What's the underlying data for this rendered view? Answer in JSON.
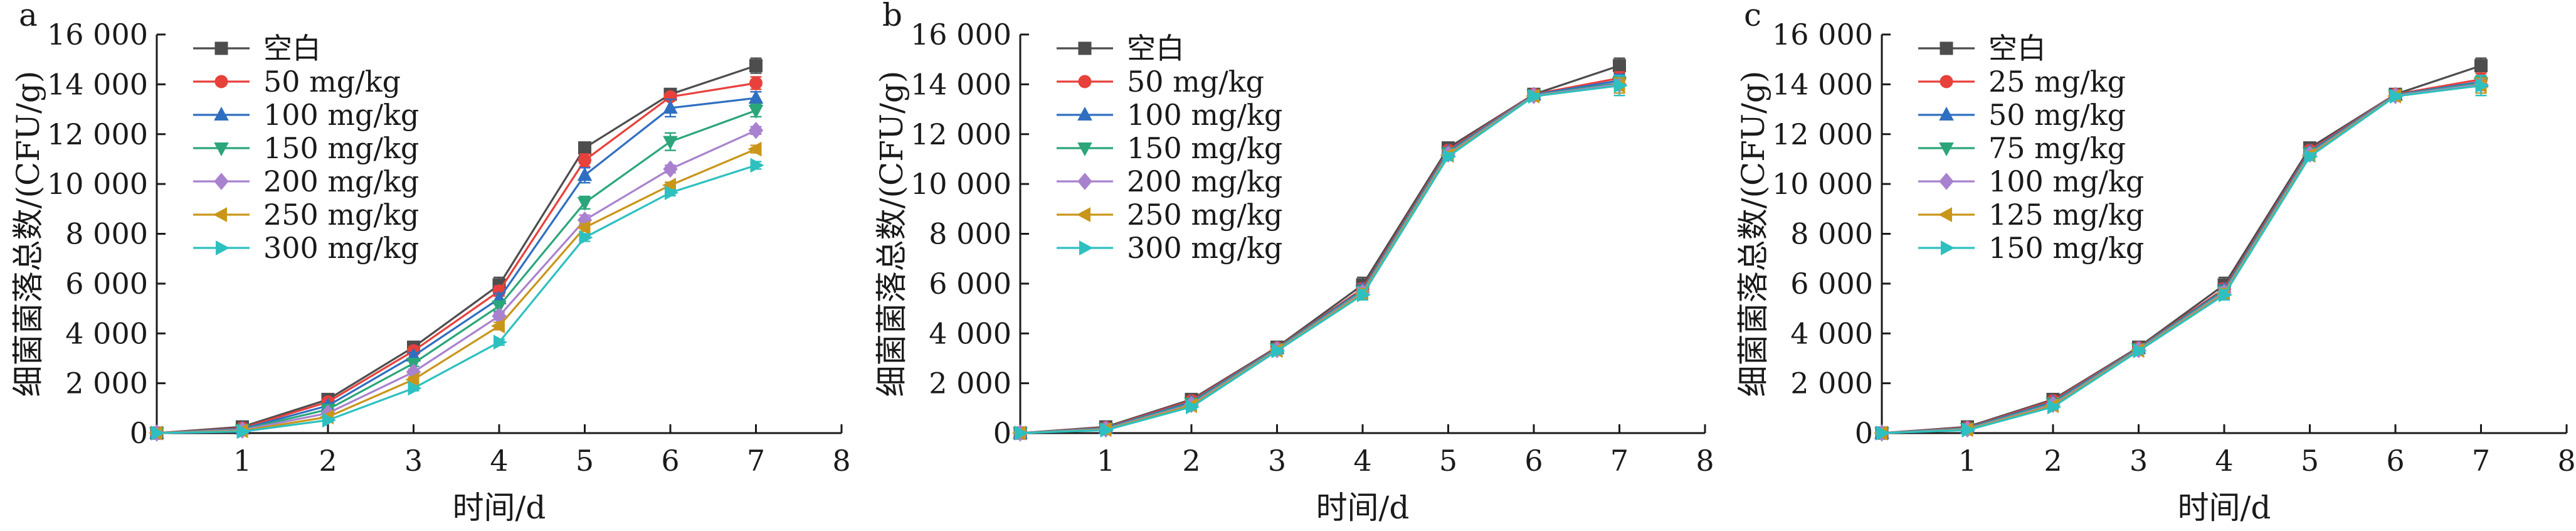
{
  "chart_data": [
    {
      "panel": "a",
      "type": "line",
      "xlabel": "时间/d",
      "ylabel": "细菌菌落总数/(CFU/g)",
      "xlim": [
        0,
        8
      ],
      "ylim": [
        0,
        16000
      ],
      "xticks": [
        1,
        2,
        3,
        4,
        5,
        6,
        7,
        8
      ],
      "xtick_labels": [
        "1",
        "2",
        "3",
        "4",
        "5",
        "6",
        "7",
        "8"
      ],
      "yticks": [
        0,
        2000,
        4000,
        6000,
        8000,
        10000,
        12000,
        14000,
        16000
      ],
      "ytick_labels": [
        "0",
        "2 000",
        "4 000",
        "6 000",
        "8 000",
        "10 000",
        "12 000",
        "14 000",
        "16 000"
      ],
      "x": [
        0,
        1,
        2,
        3,
        4,
        5,
        6,
        7
      ],
      "legend_position": "top-left",
      "series": [
        {
          "name": "空白",
          "color": "#4d4d4d",
          "marker": "square",
          "values": [
            0,
            250,
            1350,
            3450,
            5950,
            11450,
            13600,
            14750
          ],
          "errors": [
            0,
            60,
            110,
            140,
            300,
            120,
            110,
            300
          ]
        },
        {
          "name": "50 mg/kg",
          "color": "#e8413c",
          "marker": "circle",
          "values": [
            0,
            200,
            1250,
            3300,
            5700,
            10950,
            13500,
            14050
          ],
          "errors": [
            0,
            50,
            90,
            130,
            200,
            250,
            120,
            250
          ]
        },
        {
          "name": "100 mg/kg",
          "color": "#2f6fc1",
          "marker": "triangle-up",
          "values": [
            0,
            170,
            1100,
            3100,
            5400,
            10350,
            13050,
            13450
          ],
          "errors": [
            0,
            50,
            90,
            130,
            200,
            300,
            350,
            250
          ]
        },
        {
          "name": "150 mg/kg",
          "color": "#2ba67a",
          "marker": "triangle-down",
          "values": [
            0,
            140,
            950,
            2800,
            5100,
            9250,
            11700,
            12950
          ],
          "errors": [
            0,
            40,
            80,
            120,
            200,
            250,
            350,
            250
          ]
        },
        {
          "name": "200 mg/kg",
          "color": "#a982cf",
          "marker": "diamond",
          "values": [
            0,
            120,
            800,
            2450,
            4700,
            8550,
            10600,
            12150
          ],
          "errors": [
            0,
            40,
            80,
            110,
            150,
            200,
            150,
            150
          ]
        },
        {
          "name": "250 mg/kg",
          "color": "#c9961a",
          "marker": "triangle-left",
          "values": [
            0,
            90,
            650,
            2150,
            4300,
            8250,
            9950,
            11400
          ],
          "errors": [
            0,
            30,
            60,
            100,
            150,
            150,
            120,
            150
          ]
        },
        {
          "name": "300 mg/kg",
          "color": "#2ec0c0",
          "marker": "triangle-right",
          "values": [
            0,
            60,
            520,
            1800,
            3650,
            7850,
            9650,
            10750
          ],
          "errors": [
            0,
            30,
            60,
            100,
            120,
            150,
            120,
            150
          ]
        }
      ]
    },
    {
      "panel": "b",
      "type": "line",
      "xlabel": "时间/d",
      "ylabel": "细菌菌落总数/(CFU/g)",
      "xlim": [
        0,
        8
      ],
      "ylim": [
        0,
        16000
      ],
      "xticks": [
        1,
        2,
        3,
        4,
        5,
        6,
        7,
        8
      ],
      "xtick_labels": [
        "1",
        "2",
        "3",
        "4",
        "5",
        "6",
        "7",
        "8"
      ],
      "yticks": [
        0,
        2000,
        4000,
        6000,
        8000,
        10000,
        12000,
        14000,
        16000
      ],
      "ytick_labels": [
        "0",
        "2 000",
        "4 000",
        "6 000",
        "8 000",
        "10 000",
        "12 000",
        "14 000",
        "16 000"
      ],
      "x": [
        0,
        1,
        2,
        3,
        4,
        5,
        6,
        7
      ],
      "legend_position": "top-left",
      "series": [
        {
          "name": "空白",
          "color": "#4d4d4d",
          "marker": "square",
          "values": [
            0,
            250,
            1350,
            3450,
            5950,
            11450,
            13600,
            14750
          ],
          "errors": [
            0,
            60,
            110,
            140,
            300,
            120,
            110,
            300
          ]
        },
        {
          "name": "50 mg/kg",
          "color": "#e8413c",
          "marker": "circle",
          "values": [
            0,
            220,
            1300,
            3420,
            5800,
            11350,
            13600,
            14250
          ],
          "errors": [
            0,
            50,
            100,
            130,
            200,
            150,
            110,
            250
          ]
        },
        {
          "name": "100 mg/kg",
          "color": "#2f6fc1",
          "marker": "triangle-up",
          "values": [
            0,
            200,
            1250,
            3400,
            5750,
            11300,
            13580,
            14150
          ],
          "errors": [
            0,
            50,
            100,
            130,
            200,
            150,
            110,
            250
          ]
        },
        {
          "name": "150 mg/kg",
          "color": "#2ba67a",
          "marker": "triangle-down",
          "values": [
            0,
            180,
            1200,
            3380,
            5700,
            11250,
            13560,
            14050
          ],
          "errors": [
            0,
            50,
            100,
            130,
            200,
            150,
            110,
            250
          ]
        },
        {
          "name": "200 mg/kg",
          "color": "#a982cf",
          "marker": "diamond",
          "values": [
            0,
            160,
            1150,
            3350,
            5650,
            11200,
            13550,
            14000
          ],
          "errors": [
            0,
            50,
            100,
            130,
            200,
            150,
            110,
            250
          ]
        },
        {
          "name": "250 mg/kg",
          "color": "#c9961a",
          "marker": "triangle-left",
          "values": [
            0,
            140,
            1100,
            3320,
            5600,
            11150,
            13530,
            13950
          ],
          "errors": [
            0,
            40,
            100,
            130,
            200,
            150,
            110,
            300
          ]
        },
        {
          "name": "300 mg/kg",
          "color": "#2ec0c0",
          "marker": "triangle-right",
          "values": [
            0,
            120,
            1050,
            3300,
            5550,
            11100,
            13520,
            13950
          ],
          "errors": [
            0,
            40,
            100,
            130,
            200,
            150,
            110,
            400
          ]
        }
      ]
    },
    {
      "panel": "c",
      "type": "line",
      "xlabel": "时间/d",
      "ylabel": "细菌菌落总数/(CFU/g)",
      "xlim": [
        0,
        8
      ],
      "ylim": [
        0,
        16000
      ],
      "xticks": [
        1,
        2,
        3,
        4,
        5,
        6,
        7,
        8
      ],
      "xtick_labels": [
        "1",
        "2",
        "3",
        "4",
        "5",
        "6",
        "7",
        "8"
      ],
      "yticks": [
        0,
        2000,
        4000,
        6000,
        8000,
        10000,
        12000,
        14000,
        16000
      ],
      "ytick_labels": [
        "0",
        "2 000",
        "4 000",
        "6 000",
        "8 000",
        "10 000",
        "12 000",
        "14 000",
        "16 000"
      ],
      "x": [
        0,
        1,
        2,
        3,
        4,
        5,
        6,
        7
      ],
      "legend_position": "top-left",
      "series": [
        {
          "name": "空白",
          "color": "#4d4d4d",
          "marker": "square",
          "values": [
            0,
            250,
            1350,
            3450,
            5950,
            11450,
            13600,
            14750
          ],
          "errors": [
            0,
            60,
            110,
            140,
            300,
            120,
            110,
            300
          ]
        },
        {
          "name": "25 mg/kg",
          "color": "#e8413c",
          "marker": "circle",
          "values": [
            0,
            220,
            1300,
            3420,
            5800,
            11350,
            13600,
            14200
          ],
          "errors": [
            0,
            50,
            100,
            130,
            200,
            150,
            110,
            250
          ]
        },
        {
          "name": "50 mg/kg",
          "color": "#2f6fc1",
          "marker": "triangle-up",
          "values": [
            0,
            200,
            1250,
            3400,
            5750,
            11300,
            13580,
            14100
          ],
          "errors": [
            0,
            50,
            100,
            130,
            200,
            150,
            110,
            250
          ]
        },
        {
          "name": "75 mg/kg",
          "color": "#2ba67a",
          "marker": "triangle-down",
          "values": [
            0,
            180,
            1200,
            3380,
            5700,
            11250,
            13560,
            14050
          ],
          "errors": [
            0,
            50,
            100,
            130,
            200,
            150,
            110,
            250
          ]
        },
        {
          "name": "100 mg/kg",
          "color": "#a982cf",
          "marker": "diamond",
          "values": [
            0,
            160,
            1150,
            3350,
            5650,
            11200,
            13550,
            14000
          ],
          "errors": [
            0,
            50,
            100,
            130,
            200,
            150,
            110,
            250
          ]
        },
        {
          "name": "125 mg/kg",
          "color": "#c9961a",
          "marker": "triangle-left",
          "values": [
            0,
            140,
            1100,
            3320,
            5600,
            11150,
            13530,
            13950
          ],
          "errors": [
            0,
            40,
            100,
            130,
            200,
            150,
            110,
            300
          ]
        },
        {
          "name": "150 mg/kg",
          "color": "#2ec0c0",
          "marker": "triangle-right",
          "values": [
            0,
            120,
            1050,
            3300,
            5550,
            11100,
            13520,
            13950
          ],
          "errors": [
            0,
            40,
            100,
            130,
            200,
            150,
            110,
            400
          ]
        }
      ]
    }
  ]
}
